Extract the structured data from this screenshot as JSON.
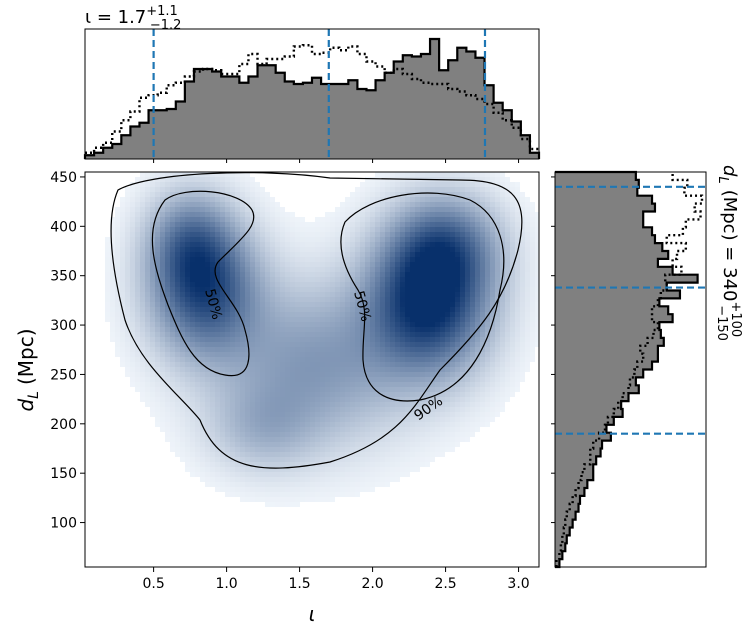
{
  "chart_data": [
    {
      "panel": "joint",
      "type": "heatmap",
      "xlabel_symbol": "ι",
      "ylabel_symbol": "d",
      "ylabel_subscript": "L",
      "ylabel_unit": "(Mpc)",
      "xlim": [
        0.03,
        3.14
      ],
      "ylim": [
        55,
        455
      ],
      "x_ticks": [
        "0.5",
        "1.0",
        "1.5",
        "2.0",
        "2.5",
        "3.0"
      ],
      "x_tick_values": [
        0.5,
        1.0,
        1.5,
        2.0,
        2.5,
        3.0
      ],
      "y_ticks": [
        "100",
        "150",
        "200",
        "250",
        "300",
        "350",
        "400",
        "450"
      ],
      "y_tick_values": [
        100,
        150,
        200,
        250,
        300,
        350,
        400,
        450
      ],
      "colormap": "Blues",
      "density_peaks": [
        {
          "x": 2.38,
          "y": 322,
          "weight": 1.0,
          "sx": 0.28,
          "sy": 48
        },
        {
          "x": 2.5,
          "y": 380,
          "weight": 0.55,
          "sx": 0.25,
          "sy": 35
        },
        {
          "x": 0.85,
          "y": 335,
          "weight": 0.8,
          "sx": 0.25,
          "sy": 45
        },
        {
          "x": 0.75,
          "y": 385,
          "weight": 0.45,
          "sx": 0.2,
          "sy": 35
        },
        {
          "x": 1.6,
          "y": 260,
          "weight": 0.42,
          "sx": 0.45,
          "sy": 55
        },
        {
          "x": 1.25,
          "y": 195,
          "weight": 0.22,
          "sx": 0.25,
          "sy": 30
        }
      ],
      "contours": [
        {
          "level": "90%",
          "label": "90%",
          "label_x": 2.4,
          "label_y": 212
        },
        {
          "level": "50%",
          "label": "50%",
          "label_x": 0.88,
          "label_y": 320
        },
        {
          "level": "50%",
          "label": "50%",
          "label_x": 1.9,
          "label_y": 318
        }
      ]
    },
    {
      "panel": "top-marginal",
      "type": "histogram",
      "title_symbol": "ι",
      "title_median": "1.7",
      "title_plus": "+1.1",
      "title_minus": "−1.2",
      "x_range": [
        0.03,
        3.14
      ],
      "bins": 50,
      "posterior": [
        0.03,
        0.05,
        0.09,
        0.12,
        0.19,
        0.26,
        0.29,
        0.39,
        0.39,
        0.4,
        0.46,
        0.62,
        0.72,
        0.72,
        0.7,
        0.66,
        0.66,
        0.61,
        0.66,
        0.75,
        0.75,
        0.69,
        0.62,
        0.6,
        0.61,
        0.65,
        0.6,
        0.6,
        0.6,
        0.63,
        0.56,
        0.55,
        0.63,
        0.69,
        0.78,
        0.83,
        0.82,
        0.84,
        0.96,
        0.71,
        0.79,
        0.89,
        0.86,
        0.81,
        0.59,
        0.45,
        0.39,
        0.3,
        0.19,
        0.05
      ],
      "prior": [
        0.05,
        0.09,
        0.13,
        0.22,
        0.31,
        0.38,
        0.49,
        0.51,
        0.53,
        0.59,
        0.61,
        0.66,
        0.7,
        0.72,
        0.71,
        0.68,
        0.68,
        0.76,
        0.84,
        0.76,
        0.8,
        0.8,
        0.82,
        0.9,
        0.91,
        0.84,
        0.85,
        0.89,
        0.87,
        0.9,
        0.84,
        0.78,
        0.74,
        0.69,
        0.72,
        0.68,
        0.64,
        0.61,
        0.6,
        0.6,
        0.56,
        0.54,
        0.51,
        0.48,
        0.44,
        0.37,
        0.31,
        0.25,
        0.16,
        0.08
      ],
      "quantiles": [
        0.5,
        1.7,
        2.77
      ],
      "fill_color": "#808080",
      "quantile_color": "#1f77b4"
    },
    {
      "panel": "right-marginal",
      "type": "histogram",
      "orientation": "horizontal",
      "side_label_symbol": "d",
      "side_label_subscript": "L",
      "side_label_unit": "(Mpc) = 340",
      "side_label_plus": "+100",
      "side_label_minus": "−150",
      "y_range": [
        55,
        455
      ],
      "bins": 50,
      "posterior": [
        0.03,
        0.05,
        0.07,
        0.08,
        0.1,
        0.12,
        0.14,
        0.16,
        0.17,
        0.2,
        0.22,
        0.26,
        0.26,
        0.28,
        0.31,
        0.32,
        0.38,
        0.35,
        0.4,
        0.46,
        0.45,
        0.5,
        0.57,
        0.55,
        0.6,
        0.66,
        0.7,
        0.7,
        0.74,
        0.72,
        0.71,
        0.8,
        0.77,
        0.71,
        0.85,
        0.76,
        0.97,
        0.8,
        0.7,
        0.77,
        0.73,
        0.68,
        0.66,
        0.6,
        0.6,
        0.68,
        0.66,
        0.56,
        0.57,
        0.55
      ],
      "prior": [
        0.01,
        0.03,
        0.04,
        0.05,
        0.06,
        0.07,
        0.08,
        0.1,
        0.12,
        0.14,
        0.16,
        0.18,
        0.2,
        0.24,
        0.24,
        0.26,
        0.3,
        0.34,
        0.36,
        0.4,
        0.43,
        0.46,
        0.5,
        0.51,
        0.54,
        0.56,
        0.6,
        0.58,
        0.63,
        0.67,
        0.7,
        0.66,
        0.66,
        0.7,
        0.72,
        0.76,
        0.75,
        0.86,
        0.8,
        0.83,
        0.89,
        0.76,
        0.87,
        0.89,
        0.99,
        0.95,
        1.0,
        0.88,
        0.9,
        0.8
      ],
      "quantiles": [
        190,
        338,
        440
      ],
      "fill_color": "#808080",
      "quantile_color": "#1f77b4"
    }
  ]
}
